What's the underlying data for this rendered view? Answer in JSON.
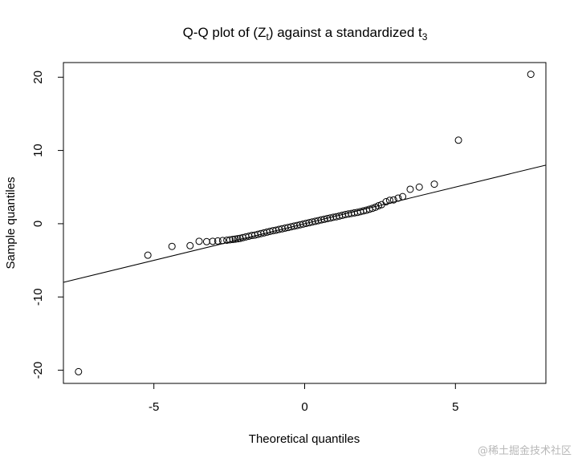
{
  "chart_data": {
    "type": "scatter",
    "title": {
      "main": "Q-Q plot of (Z",
      "sub1": "t",
      "mid": ") against a standardized t",
      "sub2": "3"
    },
    "xlabel": "Theoretical quantiles",
    "ylabel": "Sample quantiles",
    "xlim": [
      -8.0,
      8.0
    ],
    "ylim": [
      -21.8,
      22.0
    ],
    "x_ticks": [
      -5,
      0,
      5
    ],
    "y_ticks": [
      -20,
      -10,
      0,
      10,
      20
    ],
    "grid": false,
    "legend": "none",
    "reference_line": {
      "slope": 1.0,
      "intercept": 0.0
    },
    "points": [
      [
        -7.5,
        -20.2
      ],
      [
        -5.2,
        -4.3
      ],
      [
        -4.4,
        -3.1
      ],
      [
        -3.8,
        -3.0
      ],
      [
        -3.5,
        -2.4
      ],
      [
        -3.25,
        -2.45
      ],
      [
        -3.05,
        -2.4
      ],
      [
        -2.88,
        -2.35
      ],
      [
        -2.72,
        -2.3
      ],
      [
        -2.58,
        -2.25
      ],
      [
        -2.48,
        -2.2
      ],
      [
        -2.38,
        -2.15
      ],
      [
        -2.3,
        -2.1
      ],
      [
        -2.22,
        -2.05
      ],
      [
        -2.14,
        -2.0
      ],
      [
        -2.05,
        -1.9
      ],
      [
        -1.95,
        -1.8
      ],
      [
        -1.85,
        -1.7
      ],
      [
        -1.75,
        -1.6
      ],
      [
        -1.65,
        -1.55
      ],
      [
        -1.55,
        -1.45
      ],
      [
        -1.45,
        -1.35
      ],
      [
        -1.35,
        -1.25
      ],
      [
        -1.25,
        -1.15
      ],
      [
        -1.15,
        -1.05
      ],
      [
        -1.05,
        -0.95
      ],
      [
        -0.95,
        -0.88
      ],
      [
        -0.85,
        -0.78
      ],
      [
        -0.75,
        -0.7
      ],
      [
        -0.65,
        -0.6
      ],
      [
        -0.55,
        -0.52
      ],
      [
        -0.45,
        -0.42
      ],
      [
        -0.35,
        -0.33
      ],
      [
        -0.25,
        -0.24
      ],
      [
        -0.15,
        -0.14
      ],
      [
        -0.05,
        -0.05
      ],
      [
        0.05,
        0.05
      ],
      [
        0.15,
        0.14
      ],
      [
        0.25,
        0.24
      ],
      [
        0.35,
        0.33
      ],
      [
        0.45,
        0.42
      ],
      [
        0.55,
        0.52
      ],
      [
        0.65,
        0.6
      ],
      [
        0.75,
        0.7
      ],
      [
        0.85,
        0.78
      ],
      [
        0.95,
        0.88
      ],
      [
        1.05,
        0.95
      ],
      [
        1.15,
        1.05
      ],
      [
        1.25,
        1.15
      ],
      [
        1.35,
        1.25
      ],
      [
        1.45,
        1.33
      ],
      [
        1.55,
        1.4
      ],
      [
        1.65,
        1.48
      ],
      [
        1.75,
        1.55
      ],
      [
        1.85,
        1.65
      ],
      [
        1.95,
        1.75
      ],
      [
        2.05,
        1.85
      ],
      [
        2.15,
        1.98
      ],
      [
        2.25,
        2.1
      ],
      [
        2.35,
        2.25
      ],
      [
        2.45,
        2.45
      ],
      [
        2.55,
        2.6
      ],
      [
        2.7,
        3.0
      ],
      [
        2.82,
        3.2
      ],
      [
        2.95,
        3.25
      ],
      [
        3.1,
        3.5
      ],
      [
        3.25,
        3.7
      ],
      [
        3.5,
        4.7
      ],
      [
        3.8,
        5.0
      ],
      [
        4.3,
        5.4
      ],
      [
        5.1,
        11.4
      ],
      [
        7.5,
        20.4
      ]
    ]
  }
}
